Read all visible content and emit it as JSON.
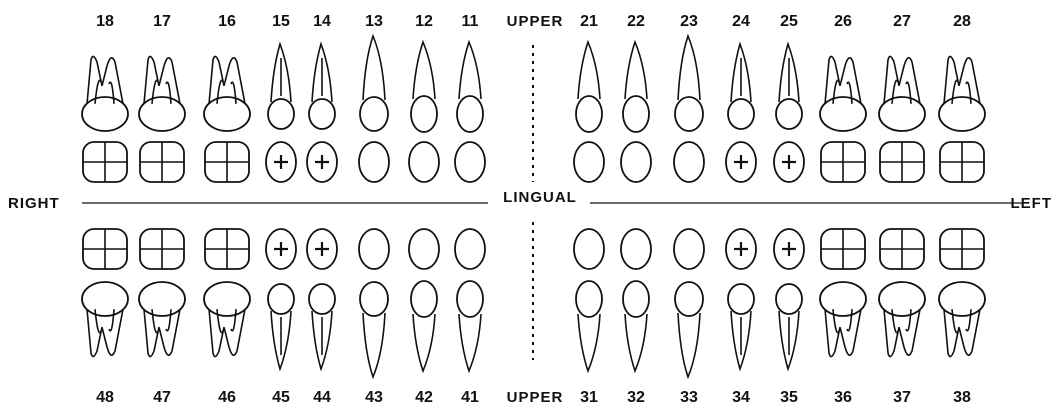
{
  "labels": {
    "upper_top": "UPPER",
    "upper_bottom": "UPPER",
    "right": "RIGHT",
    "left": "LEFT",
    "lingual": "LINGUAL"
  },
  "upper_teeth": [
    {
      "num": "18",
      "type": "molar",
      "marked": false
    },
    {
      "num": "17",
      "type": "molar",
      "marked": false
    },
    {
      "num": "16",
      "type": "molar",
      "marked": false
    },
    {
      "num": "15",
      "type": "premolar",
      "marked": true
    },
    {
      "num": "14",
      "type": "premolar",
      "marked": true
    },
    {
      "num": "13",
      "type": "canine",
      "marked": false
    },
    {
      "num": "12",
      "type": "incisor",
      "marked": false
    },
    {
      "num": "11",
      "type": "incisor",
      "marked": false
    },
    {
      "num": "21",
      "type": "incisor",
      "marked": false
    },
    {
      "num": "22",
      "type": "incisor",
      "marked": false
    },
    {
      "num": "23",
      "type": "canine",
      "marked": false
    },
    {
      "num": "24",
      "type": "premolar",
      "marked": true
    },
    {
      "num": "25",
      "type": "premolar",
      "marked": true
    },
    {
      "num": "26",
      "type": "molar",
      "marked": false
    },
    {
      "num": "27",
      "type": "molar",
      "marked": false
    },
    {
      "num": "28",
      "type": "molar",
      "marked": false
    }
  ],
  "lower_teeth": [
    {
      "num": "48",
      "type": "molar",
      "marked": false
    },
    {
      "num": "47",
      "type": "molar",
      "marked": false
    },
    {
      "num": "46",
      "type": "molar",
      "marked": false
    },
    {
      "num": "45",
      "type": "premolar",
      "marked": true
    },
    {
      "num": "44",
      "type": "premolar",
      "marked": true
    },
    {
      "num": "43",
      "type": "canine",
      "marked": false
    },
    {
      "num": "42",
      "type": "incisor",
      "marked": false
    },
    {
      "num": "41",
      "type": "incisor",
      "marked": false
    },
    {
      "num": "31",
      "type": "incisor",
      "marked": false
    },
    {
      "num": "32",
      "type": "incisor",
      "marked": false
    },
    {
      "num": "33",
      "type": "canine",
      "marked": false
    },
    {
      "num": "34",
      "type": "premolar",
      "marked": true
    },
    {
      "num": "35",
      "type": "premolar",
      "marked": true
    },
    {
      "num": "36",
      "type": "molar",
      "marked": false
    },
    {
      "num": "37",
      "type": "molar",
      "marked": false
    },
    {
      "num": "38",
      "type": "molar",
      "marked": false
    }
  ]
}
